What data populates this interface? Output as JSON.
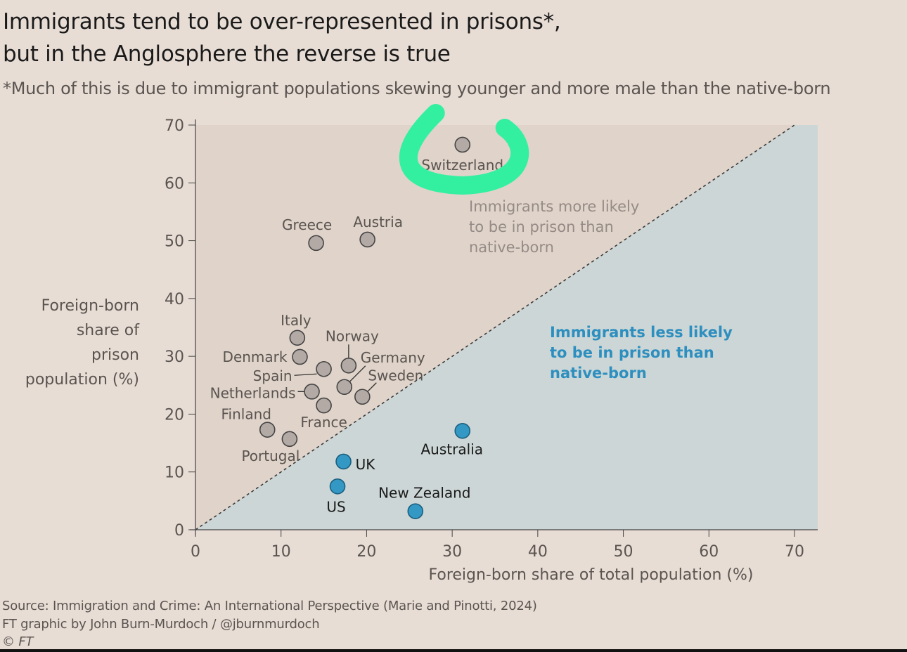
{
  "chart_data": {
    "type": "scatter",
    "title": "Immigrants tend to be over-represented in prisons*, but in the Anglosphere the reverse is true",
    "title_lines": [
      "Immigrants tend to be over-represented in prisons*,",
      "but in the Anglosphere the reverse is true"
    ],
    "subtitle": "*Much of this is due to immigrant populations skewing younger and more male than the native-born",
    "xlabel": "Foreign-born share of total population (%)",
    "ylabel_lines": [
      "Foreign-born",
      "share of",
      "prison",
      "population (%)"
    ],
    "xlim": [
      0,
      70
    ],
    "ylim": [
      0,
      70
    ],
    "xticks": [
      0,
      10,
      20,
      30,
      40,
      50,
      60,
      70
    ],
    "yticks": [
      0,
      10,
      20,
      30,
      40,
      50,
      60,
      70
    ],
    "grid": false,
    "reference_line": "y = x (dashed)",
    "region_labels": {
      "above": [
        "Immigrants more likely",
        "to be in prison than",
        "native-born"
      ],
      "below": [
        "Immigrants less likely",
        "to be in prison than",
        "native-born"
      ]
    },
    "colors": {
      "over": "#b3aaa5",
      "under": "#3399c4",
      "above_region": "#e0d3ca",
      "below_region": "#cdd6d6",
      "highlight": "#33f0a0"
    },
    "points": [
      {
        "label": "Switzerland",
        "x": 31.2,
        "y": 66.6,
        "group": "over"
      },
      {
        "label": "Greece",
        "x": 14.1,
        "y": 49.6,
        "group": "over"
      },
      {
        "label": "Austria",
        "x": 20.1,
        "y": 50.2,
        "group": "over"
      },
      {
        "label": "Italy",
        "x": 11.9,
        "y": 33.2,
        "group": "over"
      },
      {
        "label": "Denmark",
        "x": 12.2,
        "y": 29.9,
        "group": "over"
      },
      {
        "label": "Spain",
        "x": 15.0,
        "y": 27.8,
        "group": "over"
      },
      {
        "label": "Norway",
        "x": 17.9,
        "y": 28.4,
        "group": "over"
      },
      {
        "label": "Germany",
        "x": 17.4,
        "y": 24.7,
        "group": "over"
      },
      {
        "label": "Netherlands",
        "x": 13.6,
        "y": 23.9,
        "group": "over"
      },
      {
        "label": "Sweden",
        "x": 19.5,
        "y": 23.0,
        "group": "over"
      },
      {
        "label": "France",
        "x": 15.0,
        "y": 21.5,
        "group": "over"
      },
      {
        "label": "Finland",
        "x": 8.4,
        "y": 17.3,
        "group": "over"
      },
      {
        "label": "Portugal",
        "x": 11.0,
        "y": 15.7,
        "group": "over"
      },
      {
        "label": "Australia",
        "x": 31.2,
        "y": 17.1,
        "group": "under"
      },
      {
        "label": "UK",
        "x": 17.3,
        "y": 11.8,
        "group": "under"
      },
      {
        "label": "US",
        "x": 16.6,
        "y": 7.5,
        "group": "under"
      },
      {
        "label": "New Zealand",
        "x": 25.7,
        "y": 3.2,
        "group": "under"
      }
    ],
    "highlighted_point": "Switzerland"
  },
  "source": {
    "line1": "Source: Immigration and Crime: An International Perspective (Marie and Pinotti, 2024)",
    "line2": "FT graphic by John Burn-Murdoch / @jburnmurdoch",
    "line3": "© FT"
  }
}
